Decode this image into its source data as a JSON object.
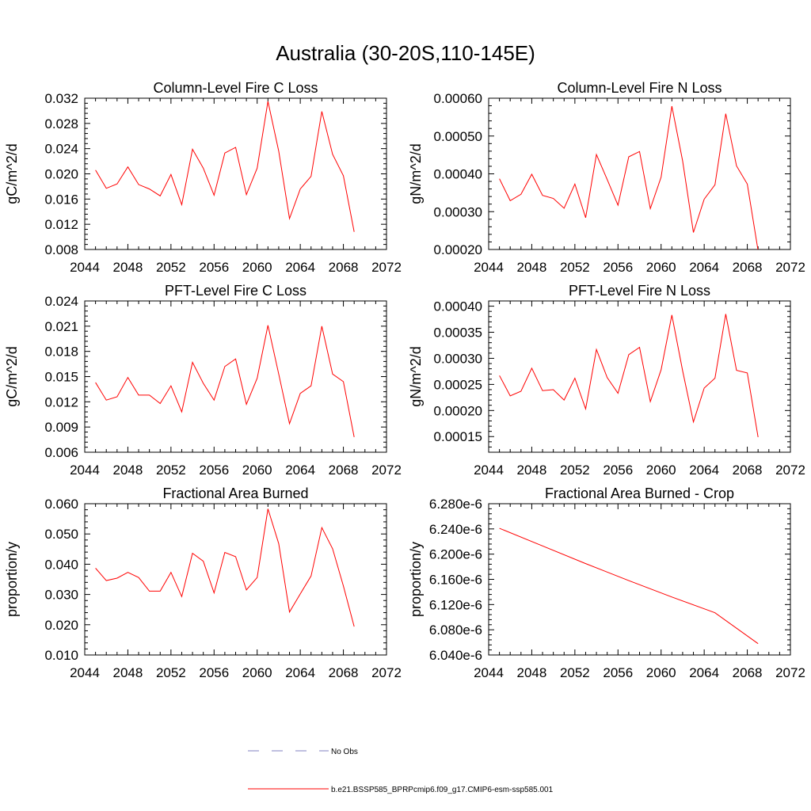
{
  "main_title": "Australia (30-20S,110-145E)",
  "colors": {
    "model": "#ff0000",
    "obs": "#8080c0",
    "axis": "#000000"
  },
  "legend": {
    "obs_label": "No Obs",
    "model_label": "b.e21.BSSP585_BPRPcmip6.f09_g17.CMIP6-esm-ssp585.001"
  },
  "chart_data": [
    {
      "type": "line",
      "title": "Column-Level Fire C Loss",
      "ylabel": "gC/m^2/d",
      "xlim": [
        2044,
        2072
      ],
      "ylim": [
        0.008,
        0.032
      ],
      "xticks": [
        2044,
        2048,
        2052,
        2056,
        2060,
        2064,
        2068,
        2072
      ],
      "yticks": [
        0.008,
        0.012,
        0.016,
        0.02,
        0.024,
        0.028,
        0.032
      ],
      "ytick_labels": [
        "0.008",
        "0.012",
        "0.016",
        "0.020",
        "0.024",
        "0.028",
        "0.032"
      ],
      "x": [
        2045,
        2046,
        2047,
        2048,
        2049,
        2050,
        2051,
        2052,
        2053,
        2054,
        2055,
        2056,
        2057,
        2058,
        2059,
        2060,
        2061,
        2062,
        2063,
        2064,
        2065,
        2066,
        2067,
        2068,
        2069
      ],
      "series": [
        {
          "values": [
            0.0206,
            0.0177,
            0.0184,
            0.0211,
            0.0183,
            0.0176,
            0.0165,
            0.0199,
            0.0151,
            0.0239,
            0.0209,
            0.0166,
            0.0233,
            0.0242,
            0.0167,
            0.0209,
            0.0315,
            0.0236,
            0.0129,
            0.0176,
            0.0196,
            0.0299,
            0.0231,
            0.0197,
            0.0108
          ]
        }
      ]
    },
    {
      "type": "line",
      "title": "Column-Level Fire N Loss",
      "ylabel": "gN/m^2/d",
      "xlim": [
        2044,
        2072
      ],
      "ylim": [
        0.0002,
        0.0006
      ],
      "xticks": [
        2044,
        2048,
        2052,
        2056,
        2060,
        2064,
        2068,
        2072
      ],
      "yticks": [
        0.0002,
        0.0003,
        0.0004,
        0.0005,
        0.0006
      ],
      "ytick_labels": [
        "0.00020",
        "0.00030",
        "0.00040",
        "0.00050",
        "0.00060"
      ],
      "x": [
        2045,
        2046,
        2047,
        2048,
        2049,
        2050,
        2051,
        2052,
        2053,
        2054,
        2055,
        2056,
        2057,
        2058,
        2059,
        2060,
        2061,
        2062,
        2063,
        2064,
        2065,
        2066,
        2067,
        2068,
        2069
      ],
      "series": [
        {
          "values": [
            0.000387,
            0.000329,
            0.000346,
            0.000399,
            0.000343,
            0.000335,
            0.000309,
            0.000373,
            0.000284,
            0.000451,
            0.000385,
            0.000317,
            0.000445,
            0.000459,
            0.000308,
            0.000391,
            0.000579,
            0.000434,
            0.000245,
            0.000333,
            0.000371,
            0.000559,
            0.000421,
            0.000373,
            0.000197
          ]
        }
      ]
    },
    {
      "type": "line",
      "title": "PFT-Level Fire C Loss",
      "ylabel": "gC/m^2/d",
      "xlim": [
        2044,
        2072
      ],
      "ylim": [
        0.006,
        0.024
      ],
      "xticks": [
        2044,
        2048,
        2052,
        2056,
        2060,
        2064,
        2068,
        2072
      ],
      "yticks": [
        0.006,
        0.009,
        0.012,
        0.015,
        0.018,
        0.021,
        0.024
      ],
      "ytick_labels": [
        "0.006",
        "0.009",
        "0.012",
        "0.015",
        "0.018",
        "0.021",
        "0.024"
      ],
      "x": [
        2045,
        2046,
        2047,
        2048,
        2049,
        2050,
        2051,
        2052,
        2053,
        2054,
        2055,
        2056,
        2057,
        2058,
        2059,
        2060,
        2061,
        2062,
        2063,
        2064,
        2065,
        2066,
        2067,
        2068,
        2069
      ],
      "series": [
        {
          "values": [
            0.0143,
            0.0122,
            0.0126,
            0.0149,
            0.0128,
            0.0128,
            0.0118,
            0.0139,
            0.0108,
            0.0167,
            0.0142,
            0.0122,
            0.0162,
            0.0171,
            0.0117,
            0.0148,
            0.0211,
            0.0153,
            0.0094,
            0.013,
            0.0139,
            0.021,
            0.0153,
            0.0144,
            0.0078
          ]
        }
      ]
    },
    {
      "type": "line",
      "title": "PFT-Level Fire N Loss",
      "ylabel": "gN/m^2/d",
      "xlim": [
        2044,
        2072
      ],
      "ylim": [
        0.00012,
        0.00041
      ],
      "xticks": [
        2044,
        2048,
        2052,
        2056,
        2060,
        2064,
        2068,
        2072
      ],
      "yticks": [
        0.00015,
        0.0002,
        0.00025,
        0.0003,
        0.00035,
        0.0004
      ],
      "ytick_labels": [
        "0.00015",
        "0.00020",
        "0.00025",
        "0.00030",
        "0.00035",
        "0.00040"
      ],
      "x": [
        2045,
        2046,
        2047,
        2048,
        2049,
        2050,
        2051,
        2052,
        2053,
        2054,
        2055,
        2056,
        2057,
        2058,
        2059,
        2060,
        2061,
        2062,
        2063,
        2064,
        2065,
        2066,
        2067,
        2068,
        2069
      ],
      "series": [
        {
          "values": [
            0.000267,
            0.000228,
            0.000237,
            0.000281,
            0.000238,
            0.00024,
            0.00022,
            0.000262,
            0.000203,
            0.000317,
            0.000263,
            0.000233,
            0.000307,
            0.000321,
            0.000217,
            0.000278,
            0.000383,
            0.000276,
            0.000178,
            0.000243,
            0.000262,
            0.000385,
            0.000277,
            0.000272,
            0.000149
          ]
        }
      ]
    },
    {
      "type": "line",
      "title": "Fractional Area Burned",
      "ylabel": "proportion/y",
      "xlim": [
        2044,
        2072
      ],
      "ylim": [
        0.01,
        0.06
      ],
      "xticks": [
        2044,
        2048,
        2052,
        2056,
        2060,
        2064,
        2068,
        2072
      ],
      "yticks": [
        0.01,
        0.02,
        0.03,
        0.04,
        0.05,
        0.06
      ],
      "ytick_labels": [
        "0.010",
        "0.020",
        "0.030",
        "0.040",
        "0.050",
        "0.060"
      ],
      "x": [
        2045,
        2046,
        2047,
        2048,
        2049,
        2050,
        2051,
        2052,
        2053,
        2054,
        2055,
        2056,
        2057,
        2058,
        2059,
        2060,
        2061,
        2062,
        2063,
        2064,
        2065,
        2066,
        2067,
        2068,
        2069
      ],
      "series": [
        {
          "values": [
            0.0387,
            0.0346,
            0.0354,
            0.0373,
            0.0356,
            0.0311,
            0.0311,
            0.0373,
            0.0293,
            0.0436,
            0.041,
            0.0305,
            0.0439,
            0.0425,
            0.0315,
            0.0356,
            0.0583,
            0.0468,
            0.0242,
            0.0302,
            0.0361,
            0.0521,
            0.0451,
            0.0328,
            0.0194
          ]
        }
      ]
    },
    {
      "type": "line",
      "title": "Fractional Area Burned - Crop",
      "ylabel": "proportion/y",
      "xlim": [
        2044,
        2072
      ],
      "ylim": [
        6.04e-06,
        6.28e-06
      ],
      "xticks": [
        2044,
        2048,
        2052,
        2056,
        2060,
        2064,
        2068,
        2072
      ],
      "yticks": [
        6.04e-06,
        6.08e-06,
        6.12e-06,
        6.16e-06,
        6.2e-06,
        6.24e-06,
        6.28e-06
      ],
      "ytick_labels": [
        "6.040e-6",
        "6.080e-6",
        "6.120e-6",
        "6.160e-6",
        "6.200e-6",
        "6.240e-6",
        "6.280e-6"
      ],
      "x": [
        2045,
        2049,
        2053,
        2057,
        2061,
        2065,
        2069
      ],
      "series": [
        {
          "values": [
            6.241e-06,
            6.213e-06,
            6.185e-06,
            6.158e-06,
            6.132e-06,
            6.107e-06,
            6.058e-06
          ]
        }
      ]
    }
  ]
}
